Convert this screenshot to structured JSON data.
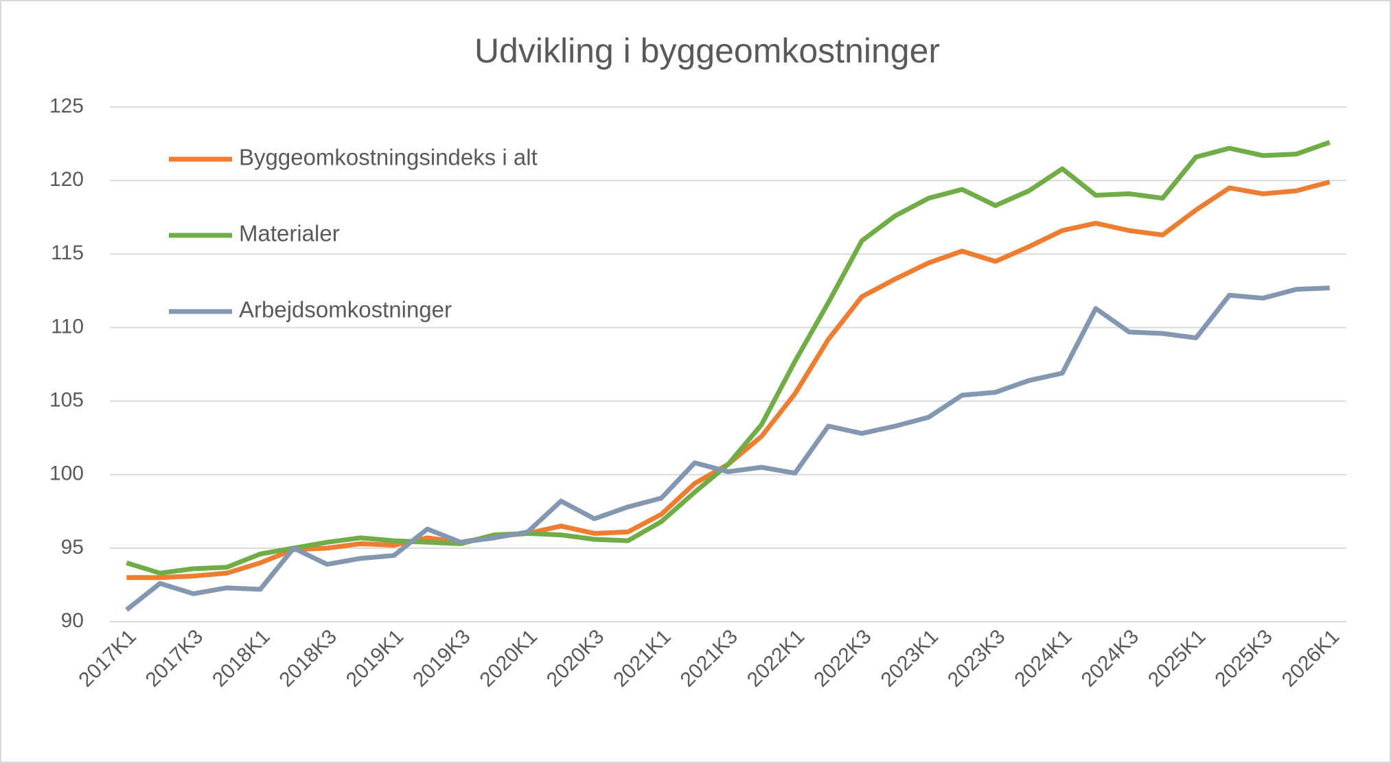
{
  "chart_data": {
    "type": "line",
    "title": "Udvikling i byggeomkostninger",
    "categories": [
      "2017K1",
      null,
      "2017K3",
      null,
      "2018K1",
      null,
      "2018K3",
      null,
      "2019K1",
      null,
      "2019K3",
      null,
      "2020K1",
      null,
      "2020K3",
      null,
      "2021K1",
      null,
      "2021K3",
      null,
      "2022K1",
      null,
      "2022K3",
      null,
      "2023K1",
      null,
      "2023K3",
      null,
      "2024K1",
      null,
      "2024K3",
      null,
      "2025K1",
      null,
      "2025K3",
      null,
      "2026K1"
    ],
    "series": [
      {
        "name": "Byggeomkostningsindeks i alt",
        "color": "#ed7d31",
        "values": [
          93.0,
          93.0,
          93.1,
          93.3,
          94.0,
          94.9,
          95.0,
          95.3,
          95.2,
          95.7,
          95.4,
          95.8,
          96.0,
          96.5,
          96.0,
          96.1,
          97.3,
          99.4,
          100.7,
          102.6,
          105.5,
          109.2,
          112.1,
          113.3,
          114.4,
          115.2,
          114.5,
          115.5,
          116.6,
          117.1,
          116.6,
          116.3,
          118.0,
          119.5,
          119.1,
          119.3,
          119.9
        ]
      },
      {
        "name": "Materialer",
        "color": "#70ad47",
        "values": [
          94.0,
          93.3,
          93.6,
          93.7,
          94.6,
          95.0,
          95.4,
          95.7,
          95.5,
          95.4,
          95.3,
          95.9,
          96.0,
          95.9,
          95.6,
          95.5,
          96.8,
          98.8,
          100.7,
          103.4,
          107.7,
          111.7,
          115.9,
          117.6,
          118.8,
          119.4,
          118.3,
          119.3,
          120.8,
          119.0,
          119.1,
          118.8,
          121.6,
          122.2,
          121.7,
          121.8,
          122.6
        ]
      },
      {
        "name": "Arbejdsomkostninger",
        "color": "#8497b0",
        "values": [
          90.8,
          92.6,
          91.9,
          92.3,
          92.2,
          95.0,
          93.9,
          94.3,
          94.5,
          96.3,
          95.4,
          95.7,
          96.1,
          98.2,
          97.0,
          97.8,
          98.4,
          100.8,
          100.2,
          100.5,
          100.1,
          103.3,
          102.8,
          103.3,
          103.9,
          105.4,
          105.6,
          106.4,
          106.9,
          111.3,
          109.7,
          109.6,
          109.3,
          112.2,
          112.0,
          112.6,
          112.7
        ]
      }
    ],
    "ylim": [
      90,
      125
    ],
    "yticks": [
      90,
      95,
      100,
      105,
      110,
      115,
      120,
      125
    ],
    "grid": true
  }
}
